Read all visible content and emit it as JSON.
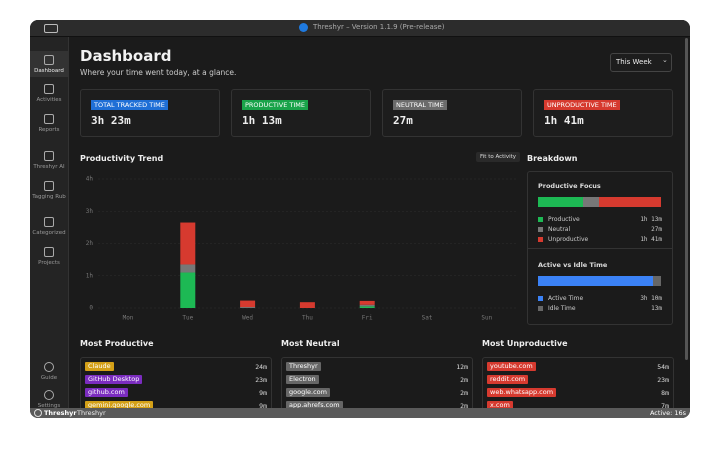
{
  "window": {
    "title": "Threshyr – Version 1.1.9 (Pre-release)"
  },
  "sidebar": {
    "top": [
      "Dashboard",
      "Activities",
      "Reports",
      "Threshyr AI",
      "Tagging Rub",
      "Categorized",
      "Projects"
    ],
    "bottom": [
      "Guide",
      "Settings"
    ]
  },
  "header": {
    "title": "Dashboard",
    "subtitle": "Where your time went today, at a glance.",
    "range": "This Week"
  },
  "cards": [
    {
      "label": "TOTAL TRACKED TIME",
      "value": "3h 23m",
      "color": "#1f6fd6"
    },
    {
      "label": "PRODUCTIVE TIME",
      "value": "1h 13m",
      "color": "#1aa34a"
    },
    {
      "label": "NEUTRAL TIME",
      "value": "27m",
      "color": "#6b6b6b"
    },
    {
      "label": "UNPRODUCTIVE TIME",
      "value": "1h 41m",
      "color": "#d63a2f"
    }
  ],
  "trend": {
    "title": "Productivity Trend",
    "button": "Fit to Activity",
    "type": "bar",
    "stacked": true,
    "categories": [
      "Mon",
      "Tue",
      "Wed",
      "Thu",
      "Fri",
      "Sat",
      "Sun"
    ],
    "series": [
      {
        "color": "#1db954",
        "values": [
          0,
          1.1,
          0,
          0,
          0.05,
          0,
          0
        ]
      },
      {
        "color": "#777777",
        "values": [
          0,
          0.25,
          0.03,
          0,
          0.05,
          0,
          0
        ]
      },
      {
        "color": "#d63a2f",
        "values": [
          0,
          1.3,
          0.2,
          0.18,
          0.12,
          0,
          0
        ]
      }
    ],
    "ylim": [
      0,
      4
    ],
    "yticks": [
      0,
      {
        "value": 1,
        "label": "1h"
      },
      {
        "value": 2,
        "label": "2h"
      },
      {
        "value": 3,
        "label": "3h"
      },
      {
        "value": 4,
        "label": "4h"
      }
    ],
    "grid": true
  },
  "breakdown": {
    "title": "Breakdown",
    "groups": [
      {
        "title": "Productive Focus",
        "items": [
          {
            "name": "Productive",
            "color": "#1db954"
          },
          {
            "name": "Neutral",
            "color": "#777777"
          },
          {
            "name": "Unproductive",
            "color": "#d63a2f"
          }
        ],
        "values": [
          73,
          27,
          101
        ],
        "value_labels": [
          "1h 13m",
          "27m",
          "1h 41m"
        ]
      },
      {
        "title": "Active vs Idle Time",
        "items": [
          {
            "name": "Active Time",
            "color": "#3b82f6"
          },
          {
            "name": "Idle Time",
            "color": "#666666"
          }
        ],
        "values": [
          190,
          13
        ],
        "value_labels": [
          "3h 10m",
          "13m"
        ]
      }
    ]
  },
  "lists": [
    {
      "title": "Most Productive",
      "items": [
        {
          "name": "Claude",
          "time": "24m",
          "color": "#d4a017"
        },
        {
          "name": "GitHub Desktop",
          "time": "23m",
          "color": "#7b2cbf"
        },
        {
          "name": "github.com",
          "time": "9m",
          "color": "#7b2cbf"
        },
        {
          "name": "gemini.google.com",
          "time": "9m",
          "color": "#d4a017"
        }
      ]
    },
    {
      "title": "Most Neutral",
      "items": [
        {
          "name": "Threshyr",
          "time": "12m",
          "color": "#666666"
        },
        {
          "name": "Electron",
          "time": "2m",
          "color": "#666666"
        },
        {
          "name": "google.com",
          "time": "2m",
          "color": "#666666"
        },
        {
          "name": "app.ahrefs.com",
          "time": "2m",
          "color": "#666666"
        }
      ]
    },
    {
      "title": "Most Unproductive",
      "items": [
        {
          "name": "youtube.com",
          "time": "54m",
          "color": "#d63a2f"
        },
        {
          "name": "reddit.com",
          "time": "23m",
          "color": "#d63a2f"
        },
        {
          "name": "web.whatsapp.com",
          "time": "8m",
          "color": "#d63a2f"
        },
        {
          "name": "x.com",
          "time": "7m",
          "color": "#d63a2f"
        }
      ]
    }
  ],
  "status": {
    "app": "Threshyr",
    "page": "Threshyr",
    "active": "Active: 16s"
  }
}
